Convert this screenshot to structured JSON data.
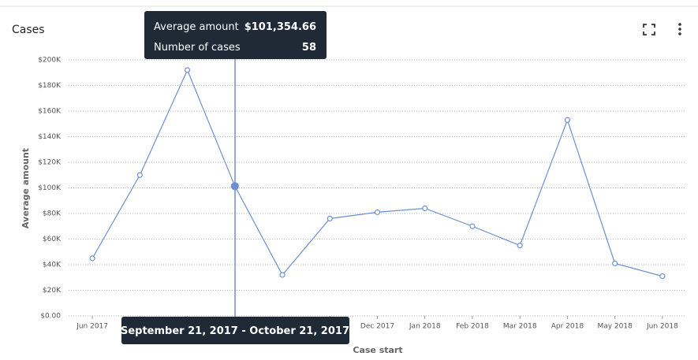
{
  "chart_data": {
    "type": "line",
    "title": "Cases",
    "y_label": "Average amount",
    "x_label": "Case start",
    "categories": [
      "Jun 2017",
      null,
      null,
      null,
      null,
      null,
      "Dec 2017",
      "Jan 2018",
      "Feb 2018",
      "Mar 2018",
      "Apr 2018",
      "May 2018",
      "Jun 2018"
    ],
    "series": [
      {
        "name": "Average amount",
        "color": "#6b8fd0",
        "values": [
          45000,
          110000,
          192000,
          101354.66,
          32000,
          76000,
          81000,
          84000,
          70000,
          55000,
          153000,
          41000,
          31000
        ]
      }
    ],
    "ylim": [
      0,
      200000
    ],
    "yticks": [
      {
        "value": 0,
        "label": "$0.00"
      },
      {
        "value": 20000,
        "label": "$20K"
      },
      {
        "value": 40000,
        "label": "$40K"
      },
      {
        "value": 60000,
        "label": "$60K"
      },
      {
        "value": 80000,
        "label": "$80K"
      },
      {
        "value": 100000,
        "label": "$100K"
      },
      {
        "value": 120000,
        "label": "$120K"
      },
      {
        "value": 140000,
        "label": "$140K"
      },
      {
        "value": 160000,
        "label": "$160K"
      },
      {
        "value": 180000,
        "label": "$180K"
      },
      {
        "value": 200000,
        "label": "$200K"
      }
    ],
    "grid": true,
    "tooltip": {
      "rows": [
        {
          "label": "Average amount",
          "value": "$101,354.66"
        },
        {
          "label": "Number of cases",
          "value": "58"
        }
      ],
      "range": "September 21, 2017 - October 21, 2017"
    }
  }
}
